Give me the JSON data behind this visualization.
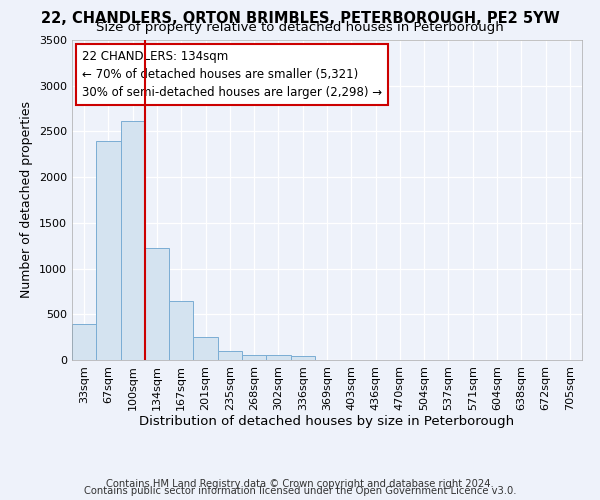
{
  "title_line1": "22, CHANDLERS, ORTON BRIMBLES, PETERBOROUGH, PE2 5YW",
  "title_line2": "Size of property relative to detached houses in Peterborough",
  "xlabel": "Distribution of detached houses by size in Peterborough",
  "ylabel": "Number of detached properties",
  "footer_line1": "Contains HM Land Registry data © Crown copyright and database right 2024.",
  "footer_line2": "Contains public sector information licensed under the Open Government Licence v3.0.",
  "categories": [
    "33sqm",
    "67sqm",
    "100sqm",
    "134sqm",
    "167sqm",
    "201sqm",
    "235sqm",
    "268sqm",
    "302sqm",
    "336sqm",
    "369sqm",
    "403sqm",
    "436sqm",
    "470sqm",
    "504sqm",
    "537sqm",
    "571sqm",
    "604sqm",
    "638sqm",
    "672sqm",
    "705sqm"
  ],
  "values": [
    390,
    2400,
    2610,
    1230,
    640,
    255,
    95,
    60,
    55,
    40,
    5,
    5,
    0,
    0,
    0,
    0,
    0,
    0,
    0,
    0,
    0
  ],
  "bar_color": "#d4e3f0",
  "bar_edge_color": "#7aadd4",
  "highlight_bar_idx": 3,
  "highlight_color": "#cc0000",
  "annotation_text": "22 CHANDLERS: 134sqm\n← 70% of detached houses are smaller (5,321)\n30% of semi-detached houses are larger (2,298) →",
  "annotation_box_color": "#ffffff",
  "annotation_box_edge": "#cc0000",
  "ylim": [
    0,
    3500
  ],
  "yticks": [
    0,
    500,
    1000,
    1500,
    2000,
    2500,
    3000,
    3500
  ],
  "background_color": "#eef2fa",
  "grid_color": "#ffffff",
  "title_fontsize": 10.5,
  "subtitle_fontsize": 9.5,
  "ylabel_fontsize": 9,
  "xlabel_fontsize": 9.5,
  "tick_fontsize": 8,
  "annot_fontsize": 8.5,
  "footer_fontsize": 7.2
}
